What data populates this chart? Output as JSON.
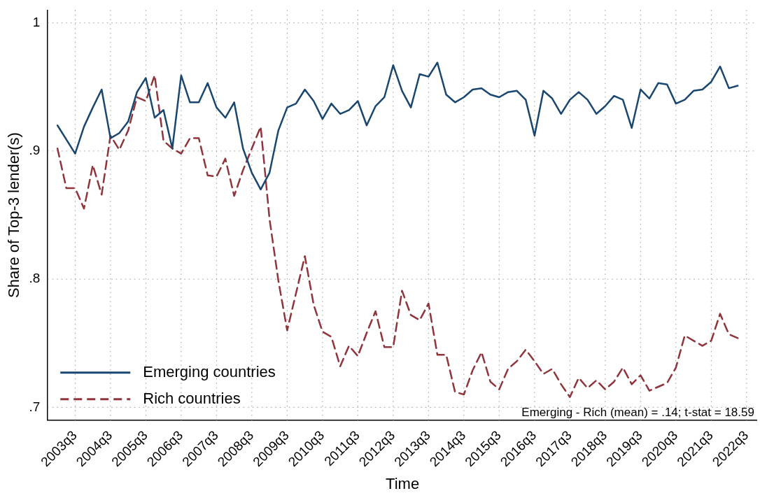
{
  "chart_data": {
    "type": "line",
    "xlabel": "Time",
    "ylabel": "Share of Top-3 lender(s)",
    "categories": [
      null,
      null,
      "2003q3",
      null,
      null,
      null,
      "2004q3",
      null,
      null,
      null,
      "2005q3",
      null,
      null,
      null,
      "2006q3",
      null,
      null,
      null,
      "2007q3",
      null,
      null,
      null,
      "2008q3",
      null,
      null,
      null,
      "2009q3",
      null,
      null,
      null,
      "2010q3",
      null,
      null,
      null,
      "2011q3",
      null,
      null,
      null,
      "2012q3",
      null,
      null,
      null,
      "2013q3",
      null,
      null,
      null,
      "2014q3",
      null,
      null,
      null,
      "2015q3",
      null,
      null,
      null,
      "2016q3",
      null,
      null,
      null,
      "2017q3",
      null,
      null,
      null,
      "2018q3",
      null,
      null,
      null,
      "2019q3",
      null,
      null,
      null,
      "2020q3",
      null,
      null,
      null,
      "2021q3",
      null,
      null,
      null,
      "2022q3"
    ],
    "series": [
      {
        "name": "Emerging countries",
        "color": "#1a476f",
        "line_style": "solid",
        "values": [
          0.92,
          0.909,
          0.898,
          0.919,
          0.934,
          0.948,
          0.91,
          0.914,
          0.923,
          0.946,
          0.957,
          0.926,
          0.932,
          0.902,
          0.959,
          0.938,
          0.938,
          0.953,
          0.934,
          0.926,
          0.938,
          0.902,
          0.883,
          0.87,
          0.883,
          0.916,
          0.934,
          0.937,
          0.948,
          0.939,
          0.925,
          0.937,
          0.929,
          0.932,
          0.939,
          0.92,
          0.935,
          0.942,
          0.967,
          0.947,
          0.934,
          0.96,
          0.958,
          0.969,
          0.944,
          0.938,
          0.942,
          0.948,
          0.949,
          0.944,
          0.942,
          0.946,
          0.947,
          0.94,
          0.912,
          0.947,
          0.941,
          0.929,
          0.94,
          0.946,
          0.94,
          0.929,
          0.935,
          0.943,
          0.94,
          0.918,
          0.948,
          0.941,
          0.953,
          0.952,
          0.937,
          0.94,
          0.947,
          0.948,
          0.954,
          0.966,
          0.949,
          0.951,
          null
        ]
      },
      {
        "name": "Rich countries",
        "color": "#90353b",
        "line_style": "dashed",
        "values": [
          0.902,
          0.871,
          0.871,
          0.855,
          0.889,
          0.866,
          0.912,
          0.901,
          0.916,
          0.942,
          0.939,
          0.959,
          0.908,
          0.902,
          0.898,
          0.91,
          0.91,
          0.881,
          0.88,
          0.894,
          0.865,
          0.885,
          0.902,
          0.919,
          0.847,
          0.799,
          0.76,
          0.789,
          0.818,
          0.78,
          0.759,
          0.755,
          0.732,
          0.748,
          0.74,
          0.758,
          0.775,
          0.747,
          0.747,
          0.791,
          0.772,
          0.768,
          0.781,
          0.741,
          0.741,
          0.712,
          0.71,
          0.729,
          0.743,
          0.72,
          0.714,
          0.73,
          0.736,
          0.745,
          0.736,
          0.726,
          0.73,
          0.718,
          0.708,
          0.723,
          0.715,
          0.721,
          0.714,
          0.72,
          0.731,
          0.718,
          0.725,
          0.713,
          0.716,
          0.719,
          0.731,
          0.756,
          0.752,
          0.748,
          0.752,
          0.773,
          0.757,
          0.754,
          null
        ]
      }
    ],
    "ylim": [
      0.69,
      1.01
    ],
    "yticks": [
      {
        "value": 0.7,
        "label": ".7"
      },
      {
        "value": 0.8,
        "label": ".8"
      },
      {
        "value": 0.9,
        "label": ".9"
      },
      {
        "value": 1,
        "label": "1"
      }
    ],
    "grid": true,
    "legend": "bottom left",
    "marker": "none",
    "annotations": [
      "Emerging - Rich (mean) = .14; t-stat = 18.59"
    ]
  }
}
